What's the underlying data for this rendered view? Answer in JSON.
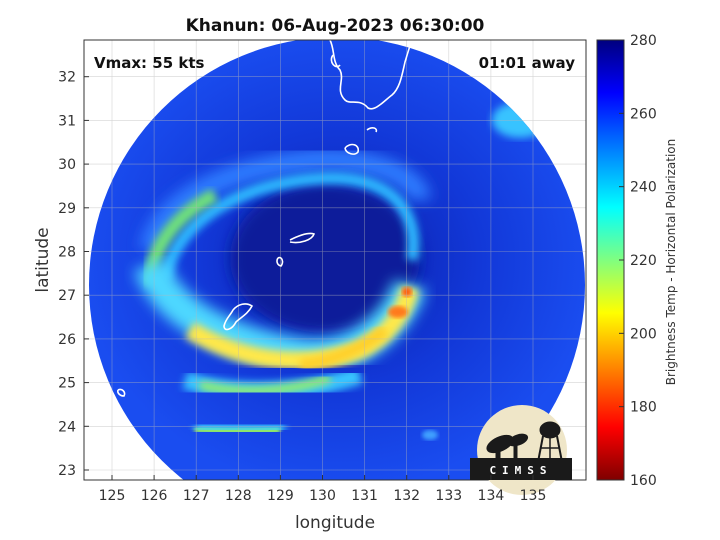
{
  "title": "Khanun: 06-Aug-2023 06:30:00",
  "vmax_label": "Vmax: 55 kts",
  "time_away": "01:01 away",
  "xlabel": "longitude",
  "ylabel": "latitude",
  "xticks": [
    "125",
    "126",
    "127",
    "128",
    "129",
    "130",
    "131",
    "132",
    "133",
    "134",
    "135"
  ],
  "yticks": [
    "23",
    "24",
    "25",
    "26",
    "27",
    "28",
    "29",
    "30",
    "31",
    "32"
  ],
  "colorbar": {
    "label": "Brightness Temp - Horizontal Polarization",
    "ticks": [
      "160",
      "180",
      "200",
      "220",
      "240",
      "260",
      "280"
    ],
    "colors": [
      "#7f0000",
      "#ff0000",
      "#ff8000",
      "#ffff00",
      "#80ff80",
      "#00ffff",
      "#0080ff",
      "#0000ff",
      "#00007f"
    ]
  },
  "logo": {
    "text": "CIMSS"
  }
}
